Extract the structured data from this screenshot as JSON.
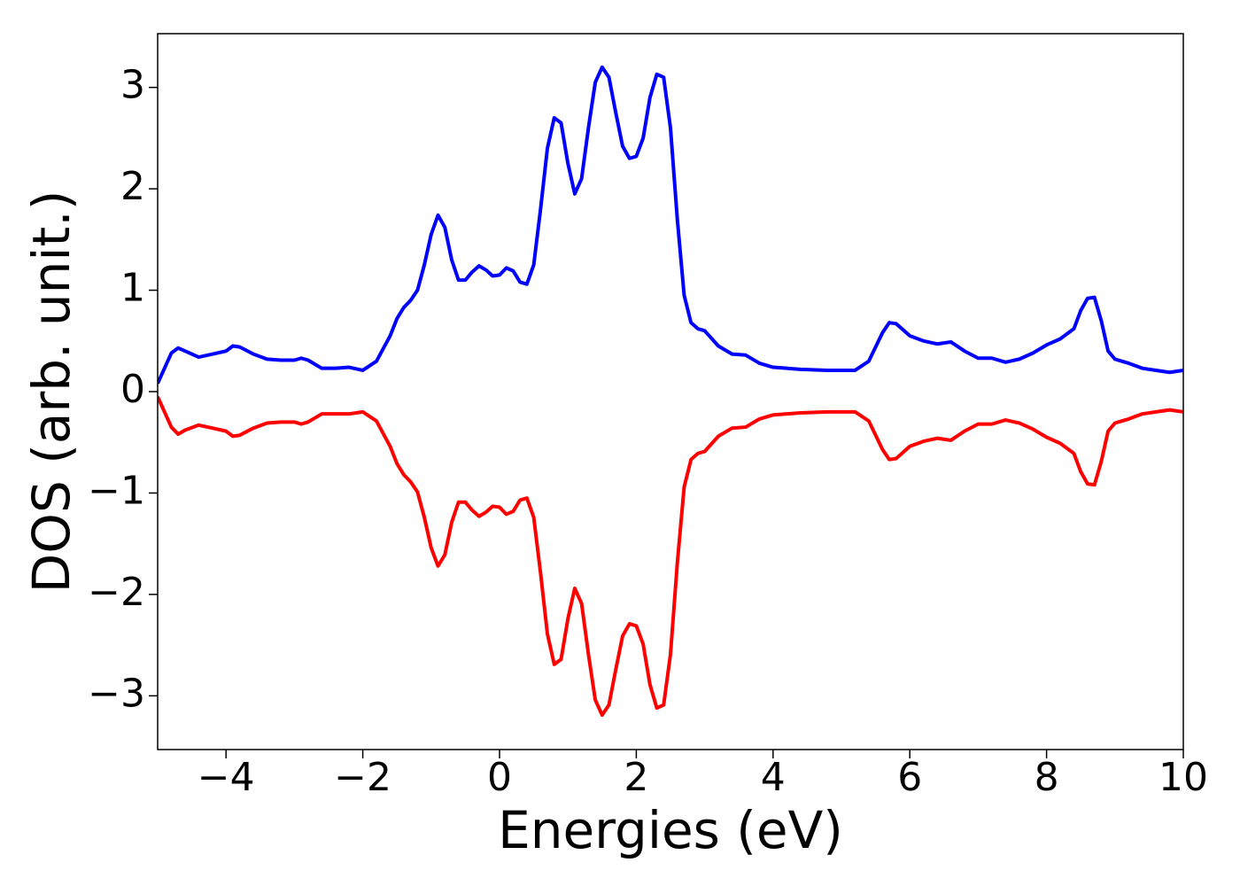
{
  "chart_data": {
    "type": "line",
    "xlabel": "Energies (eV)",
    "ylabel": "DOS (arb. unit.)",
    "xlim": [
      -5,
      10
    ],
    "ylim": [
      -3.53,
      3.53
    ],
    "xticks": [
      {
        "value": -4,
        "label": "−4"
      },
      {
        "value": -2,
        "label": "−2"
      },
      0,
      2,
      4,
      6,
      8,
      10
    ],
    "yticks": [
      {
        "value": -3,
        "label": "−3"
      },
      {
        "value": -2,
        "label": "−2"
      },
      {
        "value": -1,
        "label": "−1"
      },
      0,
      1,
      2,
      3
    ],
    "x": [
      -5,
      -4.8,
      -4.7,
      -4.6,
      -4.4,
      -4.2,
      -4.0,
      -3.9,
      -3.8,
      -3.6,
      -3.4,
      -3.2,
      -3.0,
      -2.9,
      -2.8,
      -2.6,
      -2.4,
      -2.2,
      -2.0,
      -1.8,
      -1.6,
      -1.5,
      -1.4,
      -1.3,
      -1.2,
      -1.1,
      -1.0,
      -0.9,
      -0.8,
      -0.7,
      -0.6,
      -0.5,
      -0.4,
      -0.3,
      -0.2,
      -0.1,
      0.0,
      0.1,
      0.2,
      0.3,
      0.4,
      0.5,
      0.6,
      0.7,
      0.8,
      0.9,
      1.0,
      1.1,
      1.2,
      1.3,
      1.4,
      1.5,
      1.6,
      1.7,
      1.8,
      1.9,
      2.0,
      2.1,
      2.2,
      2.3,
      2.4,
      2.5,
      2.6,
      2.7,
      2.8,
      2.9,
      3.0,
      3.2,
      3.4,
      3.6,
      3.8,
      4.0,
      4.4,
      4.8,
      5.2,
      5.4,
      5.6,
      5.7,
      5.8,
      6.0,
      6.2,
      6.4,
      6.6,
      6.8,
      7.0,
      7.2,
      7.4,
      7.6,
      7.8,
      8.0,
      8.2,
      8.4,
      8.5,
      8.6,
      8.7,
      8.8,
      8.9,
      9.0,
      9.2,
      9.4,
      9.6,
      9.8,
      10.0
    ],
    "series": [
      {
        "color": "#0000ff",
        "values": [
          0.08,
          0.38,
          0.43,
          0.4,
          0.34,
          0.37,
          0.4,
          0.45,
          0.44,
          0.37,
          0.32,
          0.31,
          0.31,
          0.33,
          0.31,
          0.23,
          0.23,
          0.24,
          0.21,
          0.3,
          0.55,
          0.72,
          0.83,
          0.9,
          1.0,
          1.25,
          1.55,
          1.74,
          1.62,
          1.3,
          1.1,
          1.1,
          1.18,
          1.24,
          1.2,
          1.14,
          1.15,
          1.22,
          1.19,
          1.08,
          1.06,
          1.25,
          1.8,
          2.4,
          2.7,
          2.65,
          2.25,
          1.95,
          2.1,
          2.6,
          3.05,
          3.2,
          3.1,
          2.75,
          2.42,
          2.3,
          2.32,
          2.5,
          2.9,
          3.13,
          3.1,
          2.6,
          1.7,
          0.95,
          0.68,
          0.62,
          0.6,
          0.45,
          0.37,
          0.36,
          0.28,
          0.24,
          0.22,
          0.21,
          0.21,
          0.3,
          0.58,
          0.68,
          0.67,
          0.55,
          0.5,
          0.47,
          0.49,
          0.4,
          0.33,
          0.33,
          0.29,
          0.32,
          0.38,
          0.46,
          0.52,
          0.62,
          0.8,
          0.92,
          0.93,
          0.7,
          0.4,
          0.32,
          0.28,
          0.23,
          0.21,
          0.19,
          0.21
        ]
      },
      {
        "color": "#ff0000",
        "values": [
          -0.05,
          -0.35,
          -0.42,
          -0.38,
          -0.33,
          -0.36,
          -0.39,
          -0.44,
          -0.43,
          -0.36,
          -0.31,
          -0.3,
          -0.3,
          -0.32,
          -0.3,
          -0.22,
          -0.22,
          -0.22,
          -0.2,
          -0.29,
          -0.54,
          -0.71,
          -0.82,
          -0.89,
          -0.99,
          -1.24,
          -1.54,
          -1.72,
          -1.61,
          -1.29,
          -1.09,
          -1.09,
          -1.17,
          -1.23,
          -1.19,
          -1.13,
          -1.14,
          -1.21,
          -1.18,
          -1.07,
          -1.05,
          -1.24,
          -1.79,
          -2.39,
          -2.69,
          -2.64,
          -2.24,
          -1.94,
          -2.09,
          -2.59,
          -3.04,
          -3.19,
          -3.09,
          -2.74,
          -2.41,
          -2.29,
          -2.31,
          -2.49,
          -2.89,
          -3.12,
          -3.09,
          -2.59,
          -1.69,
          -0.94,
          -0.67,
          -0.61,
          -0.59,
          -0.44,
          -0.36,
          -0.35,
          -0.27,
          -0.23,
          -0.21,
          -0.2,
          -0.2,
          -0.29,
          -0.57,
          -0.67,
          -0.66,
          -0.54,
          -0.49,
          -0.46,
          -0.48,
          -0.39,
          -0.32,
          -0.32,
          -0.28,
          -0.31,
          -0.37,
          -0.45,
          -0.51,
          -0.61,
          -0.79,
          -0.91,
          -0.92,
          -0.69,
          -0.39,
          -0.31,
          -0.27,
          -0.22,
          -0.2,
          -0.18,
          -0.2
        ]
      }
    ]
  }
}
